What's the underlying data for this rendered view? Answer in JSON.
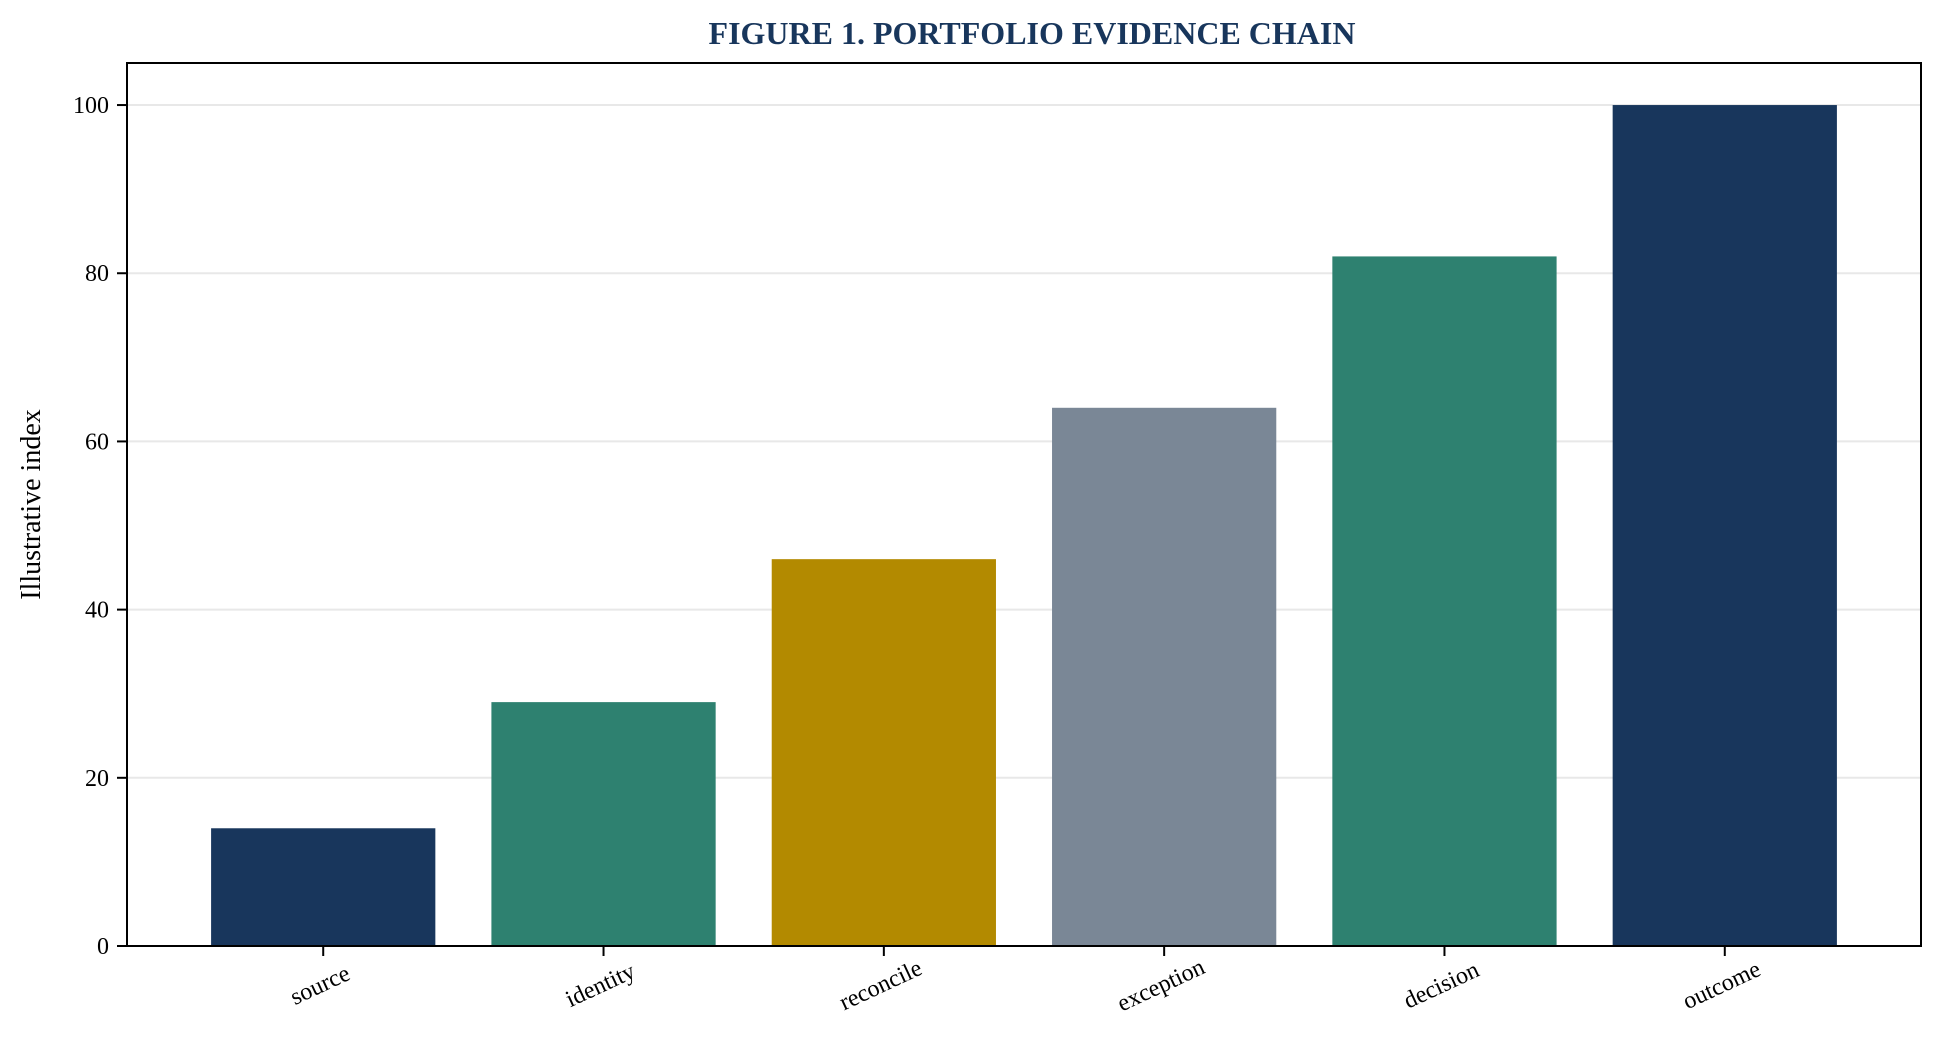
{
  "chart_data": {
    "type": "bar",
    "title": "FIGURE 1. PORTFOLIO EVIDENCE CHAIN",
    "xlabel": "",
    "ylabel": "Illustrative index",
    "categories": [
      "source",
      "identity",
      "reconcile",
      "exception",
      "decision",
      "outcome"
    ],
    "values": [
      14,
      29,
      46,
      64,
      82,
      100
    ],
    "colors": [
      "#18365c",
      "#2e8170",
      "#b38a00",
      "#7a8796",
      "#2e8170",
      "#18365c"
    ],
    "ylim": [
      0,
      105
    ],
    "yticks": [
      0,
      20,
      40,
      60,
      80,
      100
    ],
    "grid": "horizontal",
    "x_tick_rotation_deg": -25,
    "title_color": "#18365c",
    "grid_color": "#e8e8e8",
    "axis_color": "#000000"
  }
}
